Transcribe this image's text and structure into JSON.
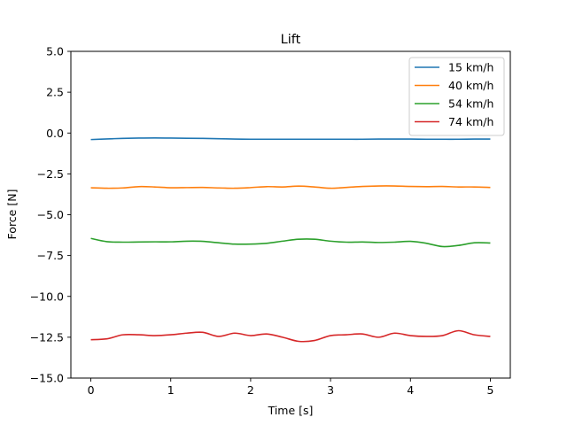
{
  "chart_data": {
    "type": "line",
    "title": "Lift",
    "xlabel": "Time [s]",
    "ylabel": "Force [N]",
    "xlim": [
      -0.25,
      5.25
    ],
    "ylim": [
      -15.0,
      5.0
    ],
    "xticks": [
      0,
      1,
      2,
      3,
      4,
      5
    ],
    "xtick_labels": [
      "0",
      "1",
      "2",
      "3",
      "4",
      "5"
    ],
    "yticks": [
      5.0,
      2.5,
      0.0,
      -2.5,
      -5.0,
      -7.5,
      -10.0,
      -12.5,
      -15.0
    ],
    "ytick_labels": [
      "5.0",
      "2.5",
      "0.0",
      "−2.5",
      "−5.0",
      "−7.5",
      "−10.0",
      "−12.5",
      "−15.0"
    ],
    "grid": false,
    "legend_position": "top-right",
    "x": [
      0.0,
      0.2,
      0.4,
      0.6,
      0.8,
      1.0,
      1.2,
      1.4,
      1.6,
      1.8,
      2.0,
      2.2,
      2.4,
      2.6,
      2.8,
      3.0,
      3.2,
      3.4,
      3.6,
      3.8,
      4.0,
      4.2,
      4.4,
      4.6,
      4.8,
      5.0
    ],
    "series": [
      {
        "name": "15 km/h",
        "color": "#1f77b4",
        "values": [
          -0.4,
          -0.36,
          -0.33,
          -0.31,
          -0.3,
          -0.31,
          -0.32,
          -0.33,
          -0.35,
          -0.37,
          -0.38,
          -0.38,
          -0.38,
          -0.38,
          -0.38,
          -0.38,
          -0.38,
          -0.38,
          -0.37,
          -0.37,
          -0.37,
          -0.38,
          -0.38,
          -0.38,
          -0.37,
          -0.37
        ]
      },
      {
        "name": "40 km/h",
        "color": "#ff7f0e",
        "values": [
          -3.35,
          -3.38,
          -3.36,
          -3.28,
          -3.3,
          -3.35,
          -3.34,
          -3.33,
          -3.36,
          -3.38,
          -3.34,
          -3.28,
          -3.3,
          -3.25,
          -3.3,
          -3.38,
          -3.33,
          -3.27,
          -3.24,
          -3.24,
          -3.27,
          -3.28,
          -3.27,
          -3.3,
          -3.3,
          -3.33
        ]
      },
      {
        "name": "54 km/h",
        "color": "#2ca02c",
        "values": [
          -6.45,
          -6.65,
          -6.68,
          -6.67,
          -6.66,
          -6.66,
          -6.62,
          -6.63,
          -6.72,
          -6.8,
          -6.8,
          -6.75,
          -6.62,
          -6.5,
          -6.5,
          -6.62,
          -6.68,
          -6.67,
          -6.7,
          -6.68,
          -6.63,
          -6.75,
          -6.95,
          -6.88,
          -6.72,
          -6.73
        ]
      },
      {
        "name": "74 km/h",
        "color": "#d62728",
        "values": [
          -12.65,
          -12.6,
          -12.35,
          -12.35,
          -12.4,
          -12.35,
          -12.25,
          -12.2,
          -12.45,
          -12.25,
          -12.4,
          -12.3,
          -12.5,
          -12.75,
          -12.7,
          -12.4,
          -12.35,
          -12.3,
          -12.5,
          -12.25,
          -12.4,
          -12.45,
          -12.4,
          -12.1,
          -12.35,
          -12.45
        ]
      }
    ]
  }
}
